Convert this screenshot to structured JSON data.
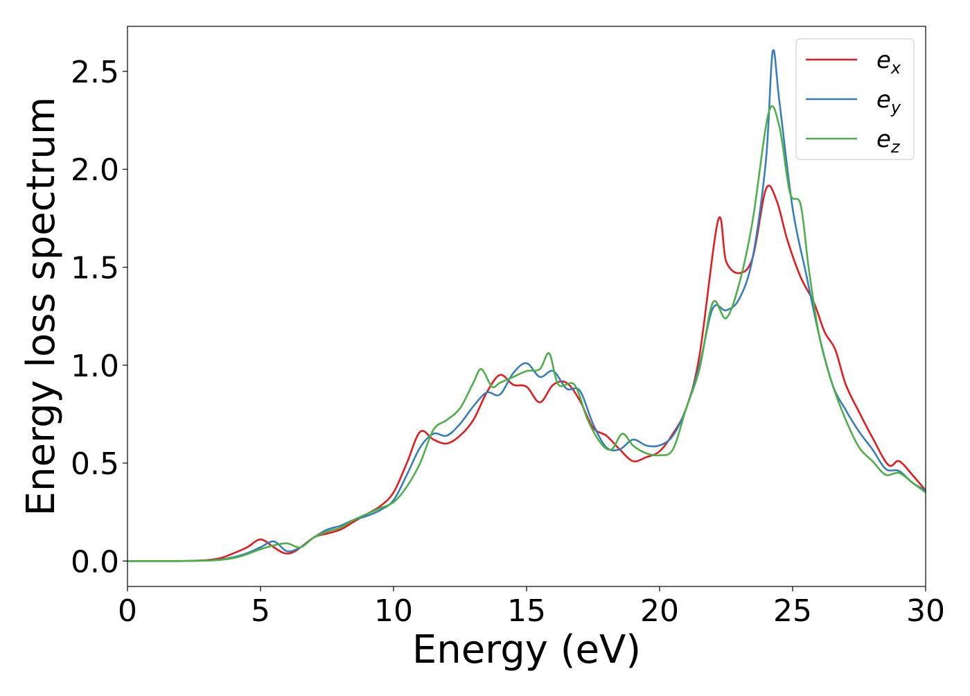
{
  "chart_data": {
    "type": "line",
    "title": "",
    "xlabel": "Energy (eV)",
    "ylabel": "Energy loss spectrum",
    "xlim": [
      0,
      30
    ],
    "ylim": [
      -0.13,
      2.73
    ],
    "xticks": [
      0,
      5,
      10,
      15,
      20,
      25,
      30
    ],
    "xtick_labels": [
      "0",
      "5",
      "10",
      "15",
      "20",
      "25",
      "30"
    ],
    "yticks": [
      0.0,
      0.5,
      1.0,
      1.5,
      2.0,
      2.5
    ],
    "ytick_labels": [
      "0.0",
      "0.5",
      "1.0",
      "1.5",
      "2.0",
      "2.5"
    ],
    "grid": false,
    "legend_position": "top-right",
    "series": [
      {
        "name": "e_x",
        "label_base": "e",
        "label_sub": "x",
        "color": "#e41a1c",
        "points": [
          [
            0,
            0
          ],
          [
            1,
            0
          ],
          [
            2,
            0
          ],
          [
            3,
            0.005
          ],
          [
            3.5,
            0.015
          ],
          [
            4,
            0.04
          ],
          [
            4.5,
            0.07
          ],
          [
            5,
            0.11
          ],
          [
            5.5,
            0.07
          ],
          [
            5.9,
            0.04
          ],
          [
            6.3,
            0.05
          ],
          [
            7,
            0.12
          ],
          [
            7.5,
            0.14
          ],
          [
            8,
            0.16
          ],
          [
            8.5,
            0.2
          ],
          [
            9,
            0.24
          ],
          [
            9.5,
            0.28
          ],
          [
            10,
            0.35
          ],
          [
            10.5,
            0.5
          ],
          [
            11,
            0.66
          ],
          [
            11.5,
            0.62
          ],
          [
            12,
            0.6
          ],
          [
            12.5,
            0.64
          ],
          [
            13,
            0.72
          ],
          [
            13.5,
            0.86
          ],
          [
            14,
            0.95
          ],
          [
            14.5,
            0.9
          ],
          [
            15,
            0.89
          ],
          [
            15.5,
            0.81
          ],
          [
            16,
            0.9
          ],
          [
            16.5,
            0.91
          ],
          [
            17,
            0.82
          ],
          [
            17.5,
            0.68
          ],
          [
            18,
            0.64
          ],
          [
            18.5,
            0.57
          ],
          [
            19,
            0.51
          ],
          [
            19.5,
            0.53
          ],
          [
            20,
            0.56
          ],
          [
            20.5,
            0.65
          ],
          [
            21,
            0.78
          ],
          [
            21.5,
            1.05
          ],
          [
            22.2,
            1.74
          ],
          [
            22.5,
            1.53
          ],
          [
            23,
            1.47
          ],
          [
            23.5,
            1.55
          ],
          [
            24,
            1.9
          ],
          [
            24.4,
            1.84
          ],
          [
            24.8,
            1.64
          ],
          [
            25.3,
            1.45
          ],
          [
            25.8,
            1.32
          ],
          [
            26.2,
            1.17
          ],
          [
            26.6,
            1.08
          ],
          [
            27,
            0.9
          ],
          [
            27.5,
            0.76
          ],
          [
            28,
            0.63
          ],
          [
            28.6,
            0.49
          ],
          [
            29,
            0.51
          ],
          [
            29.5,
            0.44
          ],
          [
            30,
            0.36
          ]
        ]
      },
      {
        "name": "e_y",
        "label_base": "e",
        "label_sub": "y",
        "color": "#377eb8",
        "points": [
          [
            0,
            0
          ],
          [
            1,
            0
          ],
          [
            2,
            0
          ],
          [
            3,
            0.003
          ],
          [
            3.5,
            0.008
          ],
          [
            4,
            0.02
          ],
          [
            4.5,
            0.04
          ],
          [
            5,
            0.07
          ],
          [
            5.5,
            0.1
          ],
          [
            6,
            0.05
          ],
          [
            6.5,
            0.07
          ],
          [
            7,
            0.12
          ],
          [
            7.5,
            0.16
          ],
          [
            8,
            0.18
          ],
          [
            8.5,
            0.21
          ],
          [
            9,
            0.23
          ],
          [
            9.5,
            0.26
          ],
          [
            10,
            0.31
          ],
          [
            10.5,
            0.44
          ],
          [
            11,
            0.58
          ],
          [
            11.5,
            0.65
          ],
          [
            12,
            0.64
          ],
          [
            12.5,
            0.7
          ],
          [
            13,
            0.79
          ],
          [
            13.5,
            0.86
          ],
          [
            14,
            0.85
          ],
          [
            14.5,
            0.96
          ],
          [
            15,
            1.01
          ],
          [
            15.5,
            0.94
          ],
          [
            16,
            0.97
          ],
          [
            16.5,
            0.88
          ],
          [
            17,
            0.87
          ],
          [
            17.5,
            0.7
          ],
          [
            18,
            0.58
          ],
          [
            18.5,
            0.57
          ],
          [
            19,
            0.62
          ],
          [
            19.5,
            0.59
          ],
          [
            20,
            0.59
          ],
          [
            20.5,
            0.64
          ],
          [
            21,
            0.78
          ],
          [
            21.5,
            1.0
          ],
          [
            22,
            1.29
          ],
          [
            22.5,
            1.28
          ],
          [
            23,
            1.34
          ],
          [
            23.5,
            1.55
          ],
          [
            24,
            2.05
          ],
          [
            24.25,
            2.6
          ],
          [
            24.5,
            2.35
          ],
          [
            25,
            1.8
          ],
          [
            25.5,
            1.47
          ],
          [
            26,
            1.15
          ],
          [
            26.5,
            0.9
          ],
          [
            27,
            0.77
          ],
          [
            27.5,
            0.66
          ],
          [
            28,
            0.57
          ],
          [
            28.5,
            0.47
          ],
          [
            29,
            0.46
          ],
          [
            29.5,
            0.4
          ],
          [
            30,
            0.36
          ]
        ]
      },
      {
        "name": "e_z",
        "label_base": "e",
        "label_sub": "z",
        "color": "#4daf4a",
        "points": [
          [
            0,
            0
          ],
          [
            1,
            0
          ],
          [
            2,
            0
          ],
          [
            3,
            0.002
          ],
          [
            3.5,
            0.006
          ],
          [
            4,
            0.015
          ],
          [
            4.5,
            0.035
          ],
          [
            5,
            0.06
          ],
          [
            5.5,
            0.08
          ],
          [
            6,
            0.09
          ],
          [
            6.5,
            0.07
          ],
          [
            7,
            0.12
          ],
          [
            7.5,
            0.15
          ],
          [
            8,
            0.17
          ],
          [
            8.5,
            0.21
          ],
          [
            9,
            0.24
          ],
          [
            9.5,
            0.27
          ],
          [
            10,
            0.3
          ],
          [
            10.5,
            0.38
          ],
          [
            11,
            0.5
          ],
          [
            11.5,
            0.67
          ],
          [
            12,
            0.72
          ],
          [
            12.5,
            0.78
          ],
          [
            13,
            0.91
          ],
          [
            13.3,
            0.98
          ],
          [
            13.7,
            0.89
          ],
          [
            14,
            0.91
          ],
          [
            14.5,
            0.94
          ],
          [
            15,
            0.97
          ],
          [
            15.5,
            0.98
          ],
          [
            15.85,
            1.06
          ],
          [
            16.2,
            0.9
          ],
          [
            16.8,
            0.9
          ],
          [
            17.3,
            0.72
          ],
          [
            17.8,
            0.6
          ],
          [
            18.2,
            0.57
          ],
          [
            18.6,
            0.65
          ],
          [
            19,
            0.59
          ],
          [
            19.5,
            0.55
          ],
          [
            20,
            0.54
          ],
          [
            20.5,
            0.57
          ],
          [
            21,
            0.78
          ],
          [
            21.5,
            0.98
          ],
          [
            22,
            1.32
          ],
          [
            22.5,
            1.24
          ],
          [
            23,
            1.42
          ],
          [
            23.5,
            1.74
          ],
          [
            24.1,
            2.29
          ],
          [
            24.5,
            2.22
          ],
          [
            24.9,
            1.88
          ],
          [
            25.3,
            1.82
          ],
          [
            25.6,
            1.5
          ],
          [
            26,
            1.15
          ],
          [
            26.5,
            0.9
          ],
          [
            27,
            0.72
          ],
          [
            27.5,
            0.58
          ],
          [
            28,
            0.51
          ],
          [
            28.5,
            0.44
          ],
          [
            29,
            0.45
          ],
          [
            29.5,
            0.4
          ],
          [
            30,
            0.35
          ]
        ]
      }
    ]
  }
}
